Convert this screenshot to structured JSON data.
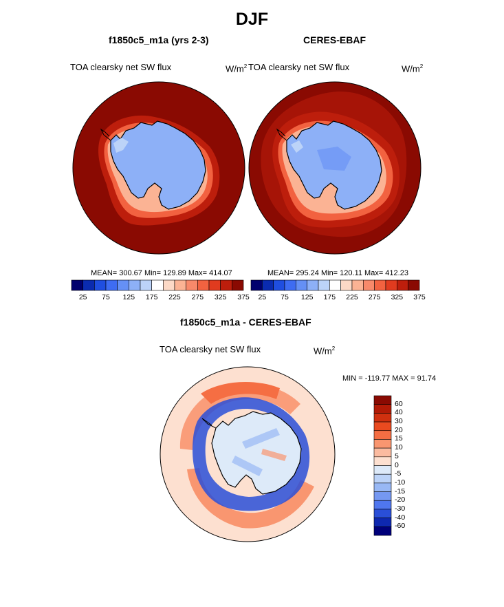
{
  "title": "DJF",
  "panels": [
    {
      "name": "model",
      "title": "f1850c5_m1a (yrs 2-3)",
      "variable": "TOA clearsky net SW flux",
      "units_base": "W/m",
      "units_exp": "2",
      "stats": "MEAN= 300.67  Min= 129.89  Max= 414.07"
    },
    {
      "name": "obs",
      "title": "CERES-EBAF",
      "variable": "TOA clearsky net SW flux",
      "units_base": "W/m",
      "units_exp": "2",
      "stats": "MEAN= 295.24  Min= 120.11  Max= 412.23"
    }
  ],
  "diff_panel": {
    "title": "f1850c5_m1a - CERES-EBAF",
    "variable": "TOA clearsky net SW flux",
    "units_base": "W/m",
    "units_exp": "2",
    "minmax": "MIN = -119.77 MAX =  91.74"
  },
  "colorbar_top": {
    "colors": [
      "#00006e",
      "#0a2bb0",
      "#1f4ee0",
      "#3e6cf2",
      "#6590f5",
      "#8db0f7",
      "#bcd3f8",
      "#ffffff",
      "#fcd9c6",
      "#fbb394",
      "#f8896a",
      "#f26240",
      "#e03b1f",
      "#bd1e0c",
      "#8a0a02"
    ],
    "tick_labels": [
      "25",
      "75",
      "125",
      "175",
      "225",
      "275",
      "325",
      "375"
    ]
  },
  "colorbar_diff": {
    "colors": [
      "#8a0a02",
      "#b21a06",
      "#d0300f",
      "#ea4a1f",
      "#f56e43",
      "#f99670",
      "#fbbba0",
      "#fde0d0",
      "#ddeaf9",
      "#bcd3f8",
      "#98b8f5",
      "#7598f2",
      "#4f76ee",
      "#2a4fd8",
      "#0e28b0",
      "#00007a"
    ],
    "tick_labels": [
      "60",
      "40",
      "30",
      "20",
      "15",
      "10",
      "5",
      "0",
      "-5",
      "-10",
      "-15",
      "-20",
      "-30",
      "-40",
      "-60"
    ]
  },
  "map_colors": {
    "ocean_max": "#8a0a02",
    "ring1": "#bd1e0c",
    "ring2": "#f26240",
    "ring3": "#fbb394",
    "ice": "#8db0f7",
    "ice_light": "#bcd3f8",
    "diff_bg": "#fde0d0",
    "diff_pos": "#f56e43",
    "diff_neg": "#2a4fd8",
    "diff_ice": "#ddeaf9"
  }
}
